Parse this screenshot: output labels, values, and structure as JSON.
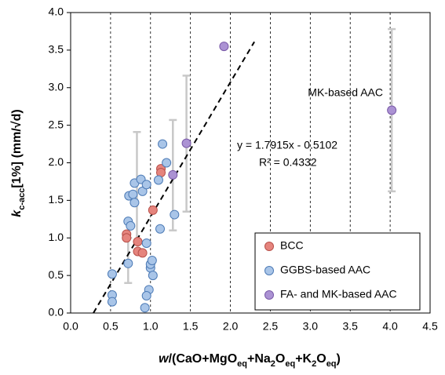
{
  "chart_data": {
    "type": "scatter",
    "xlabel_parts": [
      {
        "text": "w",
        "italic": true
      },
      {
        "text": "/(CaO+MgO"
      },
      {
        "text": "eq",
        "sub": true
      },
      {
        "text": "+Na"
      },
      {
        "text": "2",
        "sub": true
      },
      {
        "text": "O"
      },
      {
        "text": "eq",
        "sub": true
      },
      {
        "text": "+K"
      },
      {
        "text": "2",
        "sub": true
      },
      {
        "text": "O"
      },
      {
        "text": "eq",
        "sub": true
      },
      {
        "text": ")"
      }
    ],
    "ylabel_parts": [
      {
        "text": "k",
        "italic": true
      },
      {
        "text": "c-acc",
        "sub": true
      },
      {
        "text": "[1%] (mm/√d)"
      }
    ],
    "xlim": [
      0,
      4.5
    ],
    "xticks": [
      {
        "value": 0,
        "label": "0.0"
      },
      {
        "value": 0.5,
        "label": "0.5"
      },
      {
        "value": 1,
        "label": "1.0"
      },
      {
        "value": 1.5,
        "label": "1.5"
      },
      {
        "value": 2,
        "label": "2.0"
      },
      {
        "value": 2.5,
        "label": "2.5"
      },
      {
        "value": 3,
        "label": "3.0"
      },
      {
        "value": 3.5,
        "label": "3.5"
      },
      {
        "value": 4,
        "label": "4.0"
      },
      {
        "value": 4.5,
        "label": "4.5"
      }
    ],
    "ylim": [
      0,
      4
    ],
    "yticks": [
      {
        "value": 0,
        "label": "0.0"
      },
      {
        "value": 0.5,
        "label": "0.5"
      },
      {
        "value": 1,
        "label": "1.0"
      },
      {
        "value": 1.5,
        "label": "1.5"
      },
      {
        "value": 2,
        "label": "2.0"
      },
      {
        "value": 2.5,
        "label": "2.5"
      },
      {
        "value": 3,
        "label": "3.0"
      },
      {
        "value": 3.5,
        "label": "3.5"
      },
      {
        "value": 4,
        "label": "4.0"
      }
    ],
    "grid": "x",
    "legend": "lower right",
    "series": [
      {
        "name": "BCC",
        "color": "#e5847d",
        "stroke": "#b8504a",
        "x": [
          0.7,
          0.7,
          0.84,
          0.84,
          0.9,
          1.03,
          1.13,
          1.13
        ],
        "values": [
          1.05,
          1.0,
          0.95,
          0.82,
          0.8,
          1.37,
          1.92,
          1.87
        ]
      },
      {
        "name": "GGBS-based AAC",
        "color": "#a9c5e8",
        "stroke": "#4d7bb6",
        "x": [
          0.52,
          0.52,
          0.52,
          0.72,
          0.72,
          0.73,
          0.75,
          0.78,
          0.8,
          0.8,
          0.88,
          0.9,
          0.95,
          0.95,
          0.98,
          0.95,
          0.93,
          1.0,
          1.0,
          1.02,
          1.03,
          1.1,
          1.12,
          1.15,
          1.2,
          1.3
        ],
        "values": [
          0.52,
          0.24,
          0.15,
          0.66,
          1.22,
          1.56,
          1.16,
          1.58,
          1.73,
          1.47,
          1.78,
          1.62,
          1.71,
          0.93,
          0.31,
          0.23,
          0.07,
          0.6,
          0.65,
          0.7,
          0.5,
          1.77,
          1.12,
          2.25,
          2.0,
          1.31
        ]
      },
      {
        "name": "FA- and MK-based AAC",
        "color": "#ab92d3",
        "stroke": "#7a5aa8",
        "x": [
          1.28,
          1.45,
          1.92,
          4.02
        ],
        "values": [
          1.84,
          2.26,
          3.55,
          2.7
        ]
      }
    ],
    "error_bars": {
      "color": "#c8c8c8",
      "x": [
        0.72,
        0.83,
        1.28,
        1.45,
        4.02
      ],
      "low": [
        0.4,
        0.95,
        1.1,
        1.35,
        1.62
      ],
      "high": [
        1.0,
        2.41,
        2.57,
        3.16,
        3.78
      ]
    },
    "trendline": {
      "slope": 1.7915,
      "intercept": -0.5102,
      "x": [
        0.285,
        2.3
      ],
      "color": "#000000"
    },
    "annotations": [
      "y = 1.7915x - 0.5102",
      "R² = 0.4332",
      "MK-based AAC"
    ]
  }
}
